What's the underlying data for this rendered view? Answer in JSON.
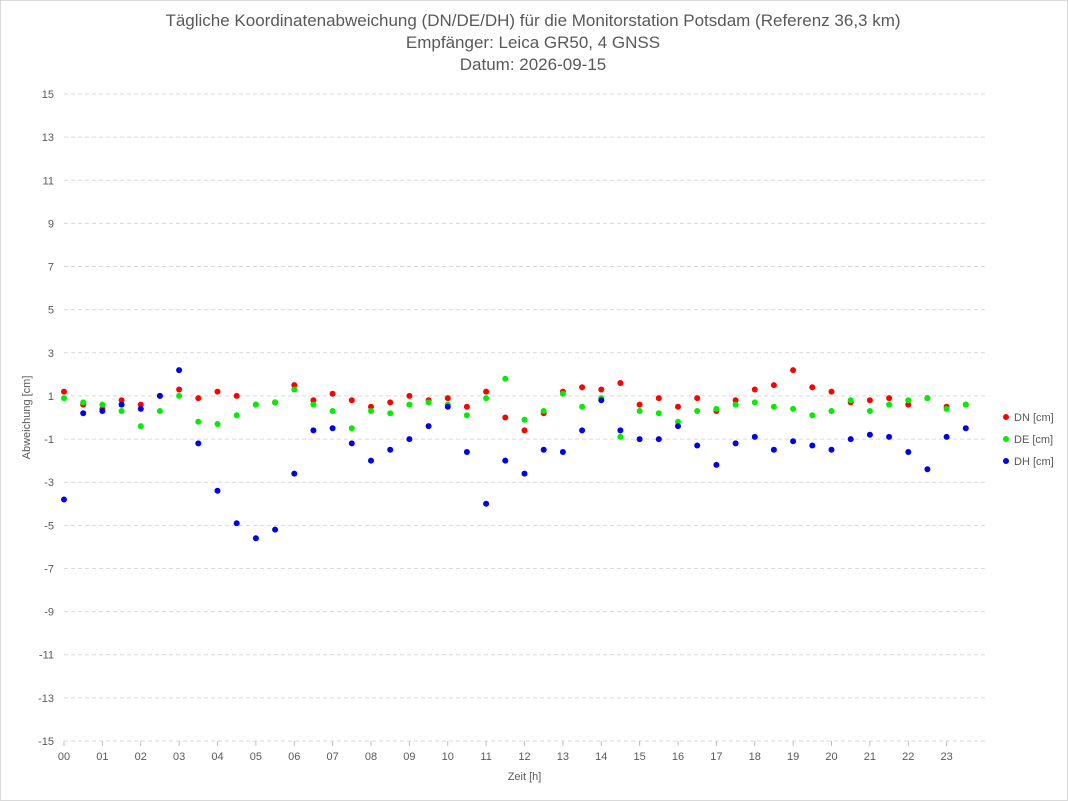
{
  "chart_data": {
    "type": "scatter",
    "title": "Tägliche Koordinatenabweichung (DN/DE/DH) für die Monitorstation Potsdam (Referenz 36,3 km)",
    "subtitle_lines": [
      "Empfänger: Leica GR50, 4 GNSS",
      "Datum: 2026-09-15"
    ],
    "xlabel": "Zeit [h]",
    "ylabel": "Abweichung [cm]",
    "xlim": [
      0,
      24
    ],
    "ylim": [
      -15,
      15
    ],
    "xticks": [
      "00",
      "01",
      "02",
      "03",
      "04",
      "05",
      "06",
      "07",
      "08",
      "09",
      "10",
      "11",
      "12",
      "13",
      "14",
      "15",
      "16",
      "17",
      "18",
      "19",
      "20",
      "21",
      "22",
      "23"
    ],
    "yticks": [
      "15",
      "13",
      "11",
      "9",
      "7",
      "5",
      "3",
      "1",
      "-1",
      "-3",
      "-5",
      "-7",
      "-9",
      "-11",
      "-13",
      "-15"
    ],
    "grid": "horizontal dashed",
    "legend_position": "right",
    "series": [
      {
        "name": "DN [cm]",
        "color": "#ff0000",
        "x": [
          0.0,
          0.5,
          1.0,
          1.5,
          2.0,
          2.5,
          3.0,
          3.5,
          4.0,
          4.5,
          5.0,
          5.5,
          6.0,
          6.5,
          7.0,
          7.5,
          8.0,
          8.5,
          9.0,
          9.5,
          10.0,
          10.5,
          11.0,
          11.5,
          12.0,
          12.5,
          13.0,
          13.5,
          14.0,
          14.5,
          15.0,
          15.5,
          16.0,
          16.5,
          17.0,
          17.5,
          18.0,
          18.5,
          19.0,
          19.5,
          20.0,
          20.5,
          21.0,
          21.5,
          22.0,
          22.5,
          23.0,
          23.5
        ],
        "y": [
          1.2,
          0.6,
          0.4,
          0.8,
          0.6,
          1.0,
          1.3,
          0.9,
          1.2,
          1.0,
          0.6,
          0.7,
          1.5,
          0.8,
          1.1,
          0.8,
          0.5,
          0.7,
          1.0,
          0.8,
          0.9,
          0.5,
          1.2,
          0.0,
          -0.6,
          0.2,
          1.2,
          1.4,
          1.3,
          1.6,
          0.6,
          0.9,
          0.5,
          0.9,
          0.3,
          0.8,
          1.3,
          1.5,
          2.2,
          1.4,
          1.2,
          0.7,
          0.8,
          0.9,
          0.6,
          0.9,
          0.5,
          0.6
        ]
      },
      {
        "name": "DE [cm]",
        "color": "#00ee00",
        "x": [
          0.0,
          0.5,
          1.0,
          1.5,
          2.0,
          2.5,
          3.0,
          3.5,
          4.0,
          4.5,
          5.0,
          5.5,
          6.0,
          6.5,
          7.0,
          7.5,
          8.0,
          8.5,
          9.0,
          9.5,
          10.0,
          10.5,
          11.0,
          11.5,
          12.0,
          12.5,
          13.0,
          13.5,
          14.0,
          14.5,
          15.0,
          15.5,
          16.0,
          16.5,
          17.0,
          17.5,
          18.0,
          18.5,
          19.0,
          19.5,
          20.0,
          20.5,
          21.0,
          21.5,
          22.0,
          22.5,
          23.0,
          23.5
        ],
        "y": [
          0.9,
          0.7,
          0.6,
          0.3,
          -0.4,
          0.3,
          1.0,
          -0.2,
          -0.3,
          0.1,
          0.6,
          0.7,
          1.3,
          0.6,
          0.3,
          -0.5,
          0.3,
          0.2,
          0.6,
          0.7,
          0.6,
          0.1,
          0.9,
          1.8,
          -0.1,
          0.3,
          1.1,
          0.5,
          0.9,
          -0.9,
          0.3,
          0.2,
          -0.2,
          0.3,
          0.4,
          0.6,
          0.7,
          0.5,
          0.4,
          0.1,
          0.3,
          0.8,
          0.3,
          0.6,
          0.8,
          0.9,
          0.4,
          0.6
        ]
      },
      {
        "name": "DH [cm]",
        "color": "#0000ee",
        "x": [
          0.0,
          0.5,
          1.0,
          1.5,
          2.0,
          2.5,
          3.0,
          3.5,
          4.0,
          4.5,
          5.0,
          5.5,
          6.0,
          6.5,
          7.0,
          7.5,
          8.0,
          8.5,
          9.0,
          9.5,
          10.0,
          10.5,
          11.0,
          11.5,
          12.0,
          12.5,
          13.0,
          13.5,
          14.0,
          14.5,
          15.0,
          15.5,
          16.0,
          16.5,
          17.0,
          17.5,
          18.0,
          18.5,
          19.0,
          19.5,
          20.0,
          20.5,
          21.0,
          21.5,
          22.0,
          22.5,
          23.0,
          23.5
        ],
        "y": [
          -3.8,
          0.2,
          0.3,
          0.6,
          0.4,
          1.0,
          2.2,
          -1.2,
          -3.4,
          -4.9,
          -5.6,
          -5.2,
          -2.6,
          -0.6,
          -0.5,
          -1.2,
          -2.0,
          -1.5,
          -1.0,
          -0.4,
          0.5,
          -1.6,
          -4.0,
          -2.0,
          -2.6,
          -1.5,
          -1.6,
          -0.6,
          0.8,
          -0.6,
          -1.0,
          -1.0,
          -0.4,
          -1.3,
          -2.2,
          -1.2,
          -0.9,
          -1.5,
          -1.1,
          -1.3,
          -1.5,
          -1.0,
          -0.8,
          -0.9,
          -1.6,
          -2.4,
          -0.9,
          -0.5
        ]
      }
    ]
  }
}
